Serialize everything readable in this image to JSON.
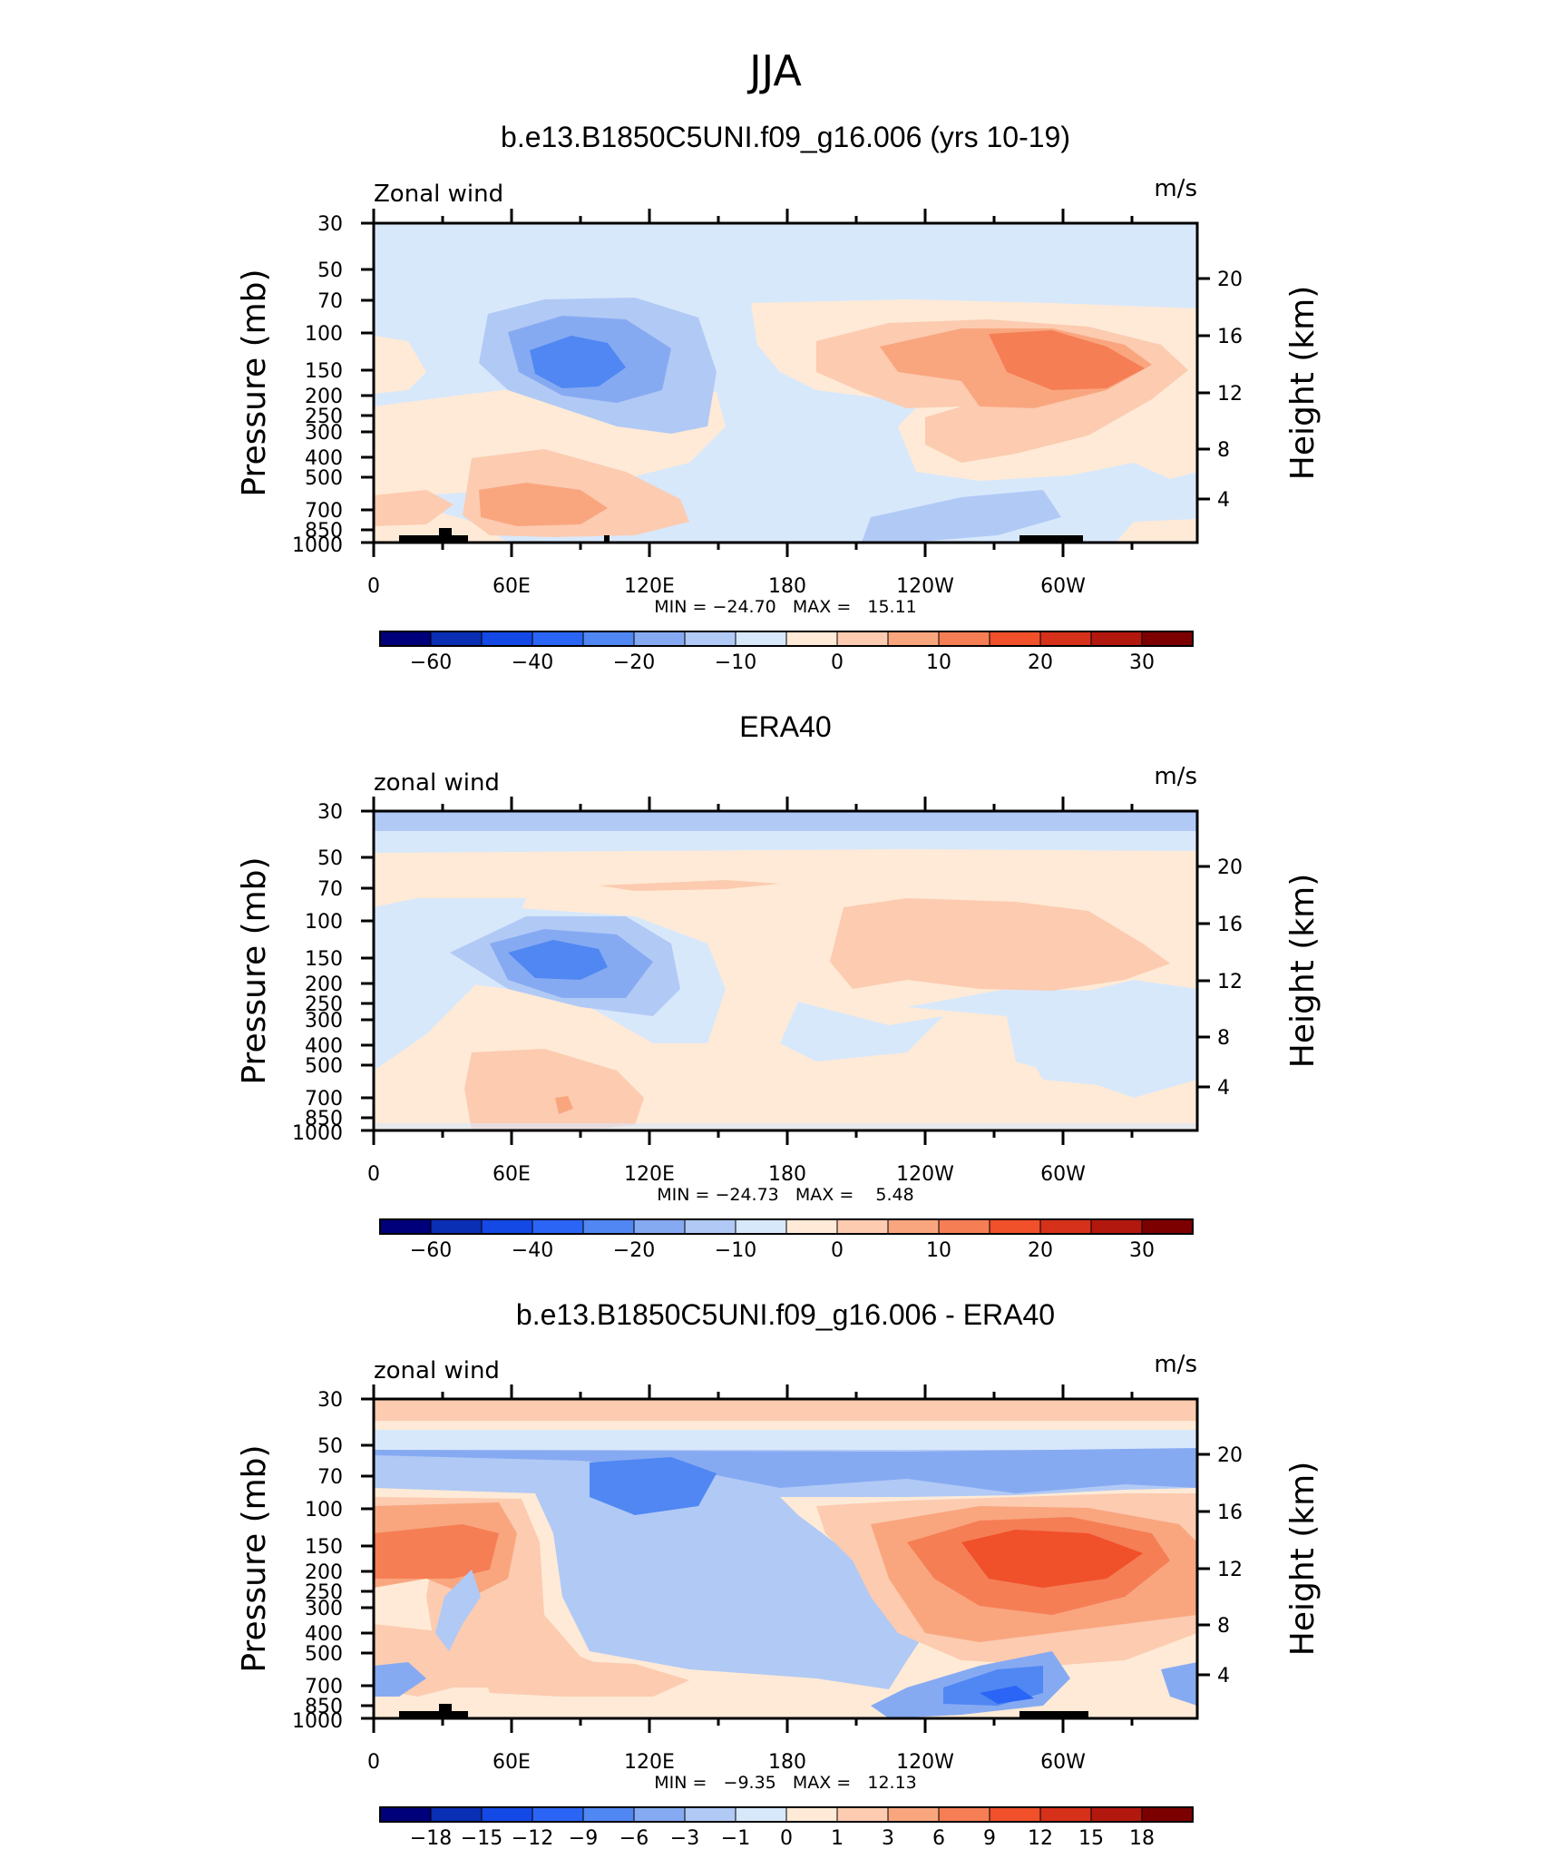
{
  "figure_title": "JJA",
  "chart_data": [
    {
      "type": "heatmap",
      "title": "b.e13.B1850C5UNI.f09_g16.006 (yrs 10-19)",
      "variable": "Zonal wind",
      "units": "m/s",
      "ylabel": "Pressure (mb)",
      "ylabel_right": "Height (km)",
      "x_ticks": [
        "0",
        "60E",
        "120E",
        "180",
        "120W",
        "60W"
      ],
      "y_ticks": [
        "30",
        "50",
        "70",
        "100",
        "150",
        "200",
        "250",
        "300",
        "400",
        "500",
        "700",
        "850",
        "1000"
      ],
      "y_ticks_right": [
        "20",
        "16",
        "12",
        "8",
        "4"
      ],
      "stats": "MIN = −24.70   MAX =   15.11",
      "min": -24.7,
      "max": 15.11,
      "colorbar_labels": [
        "−60",
        "−40",
        "−20",
        "−10",
        "0",
        "10",
        "20",
        "30"
      ],
      "colorbar_colors": [
        "#00007a",
        "#0a2eb4",
        "#1449e6",
        "#2b65f5",
        "#5087f2",
        "#86aaf2",
        "#b1c9f5",
        "#d8e8fb",
        "#feead6",
        "#fccbb0",
        "#f9a67f",
        "#f57e55",
        "#f0502a",
        "#d6311a",
        "#b3180f",
        "#7d0000"
      ],
      "features": [
        {
          "kind": "minimum",
          "lon": 80,
          "pressure": 150,
          "value": -24.7
        },
        {
          "kind": "maximum",
          "lon": 290,
          "pressure": 150,
          "value": 15.11
        },
        {
          "kind": "low-level westerly",
          "lon": 80,
          "pressure": 700,
          "value": 10
        }
      ]
    },
    {
      "type": "heatmap",
      "title": "ERA40",
      "variable": "zonal wind",
      "units": "m/s",
      "ylabel": "Pressure (mb)",
      "ylabel_right": "Height (km)",
      "x_ticks": [
        "0",
        "60E",
        "120E",
        "180",
        "120W",
        "60W"
      ],
      "y_ticks": [
        "30",
        "50",
        "70",
        "100",
        "150",
        "200",
        "250",
        "300",
        "400",
        "500",
        "700",
        "850",
        "1000"
      ],
      "y_ticks_right": [
        "20",
        "16",
        "12",
        "8",
        "4"
      ],
      "stats": "MIN = −24.73   MAX =    5.48",
      "min": -24.73,
      "max": 5.48,
      "colorbar_labels": [
        "−60",
        "−40",
        "−20",
        "−10",
        "0",
        "10",
        "20",
        "30"
      ],
      "colorbar_colors": [
        "#00007a",
        "#0a2eb4",
        "#1449e6",
        "#2b65f5",
        "#5087f2",
        "#86aaf2",
        "#b1c9f5",
        "#d8e8fb",
        "#feead6",
        "#fccbb0",
        "#f9a67f",
        "#f57e55",
        "#f0502a",
        "#d6311a",
        "#b3180f",
        "#7d0000"
      ],
      "features": [
        {
          "kind": "minimum",
          "lon": 80,
          "pressure": 150,
          "value": -24.73
        },
        {
          "kind": "maximum",
          "lon": 295,
          "pressure": 130,
          "value": 5.48
        }
      ]
    },
    {
      "type": "heatmap",
      "title": "b.e13.B1850C5UNI.f09_g16.006 - ERA40",
      "variable": "zonal wind",
      "units": "m/s",
      "ylabel": "Pressure (mb)",
      "ylabel_right": "Height (km)",
      "x_ticks": [
        "0",
        "60E",
        "120E",
        "180",
        "120W",
        "60W"
      ],
      "y_ticks": [
        "30",
        "50",
        "70",
        "100",
        "150",
        "200",
        "250",
        "300",
        "400",
        "500",
        "700",
        "850",
        "1000"
      ],
      "y_ticks_right": [
        "20",
        "16",
        "12",
        "8",
        "4"
      ],
      "stats": "MIN =   −9.35   MAX =   12.13",
      "min": -9.35,
      "max": 12.13,
      "colorbar_labels": [
        "−18",
        "−15",
        "−12",
        "−9",
        "−6",
        "−3",
        "−1",
        "0",
        "1",
        "3",
        "6",
        "9",
        "12",
        "15",
        "18"
      ],
      "colorbar_colors": [
        "#00007a",
        "#0a2eb4",
        "#1449e6",
        "#2b65f5",
        "#5087f2",
        "#86aaf2",
        "#b1c9f5",
        "#d8e8fb",
        "#feead6",
        "#fccbb0",
        "#f9a67f",
        "#f57e55",
        "#f0502a",
        "#d6311a",
        "#b3180f",
        "#7d0000"
      ],
      "features": [
        {
          "kind": "minimum",
          "lon": 270,
          "pressure": 800,
          "value": -9.35
        },
        {
          "kind": "maximum",
          "lon": 295,
          "pressure": 150,
          "value": 12.13
        }
      ]
    }
  ]
}
